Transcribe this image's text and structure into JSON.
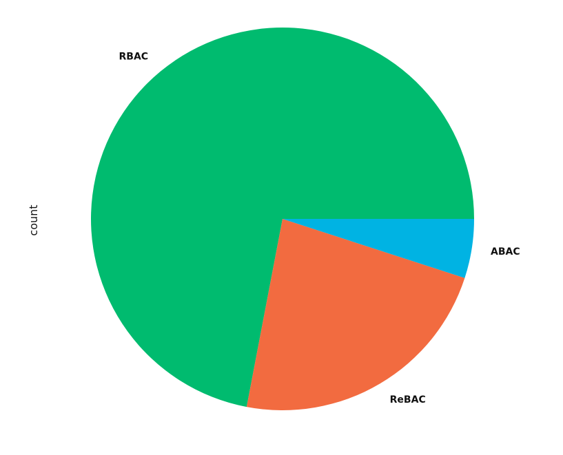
{
  "chart_data": {
    "type": "pie",
    "ylabel": "count",
    "categories": [
      "RBAC",
      "ReBAC",
      "ABAC"
    ],
    "values": [
      72,
      23,
      5
    ],
    "colors": [
      "#00bb6f",
      "#f26b40",
      "#00b3e3"
    ],
    "start_angle": "3 o'clock, counter-clockwise",
    "legend": "none"
  }
}
